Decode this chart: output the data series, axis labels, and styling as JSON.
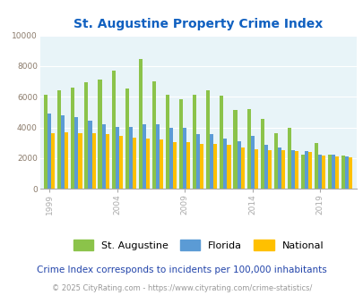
{
  "title": "St. Augustine Property Crime Index",
  "years": [
    1999,
    2000,
    2001,
    2002,
    2003,
    2004,
    2005,
    2006,
    2007,
    2008,
    2009,
    2010,
    2011,
    2012,
    2013,
    2014,
    2015,
    2016,
    2017,
    2018,
    2019,
    2020,
    2021
  ],
  "st_augustine": [
    6150,
    6450,
    6600,
    6950,
    7100,
    7700,
    6550,
    8450,
    7000,
    6150,
    5850,
    6150,
    6450,
    6100,
    5150,
    5200,
    4550,
    3600,
    4000,
    2250,
    3000,
    2250,
    2150
  ],
  "florida": [
    4900,
    4800,
    4650,
    4450,
    4200,
    4050,
    4050,
    4200,
    4200,
    3950,
    3950,
    3550,
    3550,
    3300,
    3100,
    3450,
    2850,
    2700,
    2500,
    2450,
    2250,
    2200,
    2100
  ],
  "national": [
    3600,
    3700,
    3600,
    3600,
    3550,
    3450,
    3350,
    3300,
    3200,
    3050,
    3050,
    2950,
    2900,
    2850,
    2700,
    2550,
    2500,
    2500,
    2450,
    2400,
    2150,
    2100,
    2050
  ],
  "bar_colors": [
    "#8bc34a",
    "#5b9bd5",
    "#ffc000"
  ],
  "ylim": [
    0,
    10000
  ],
  "yticks": [
    0,
    2000,
    4000,
    6000,
    8000,
    10000
  ],
  "bg_color": "#e8f4f8",
  "title_color": "#1060c0",
  "tick_color": "#8B7B6B",
  "legend_labels": [
    "St. Augustine",
    "Florida",
    "National"
  ],
  "footnote1": "Crime Index corresponds to incidents per 100,000 inhabitants",
  "footnote2": "© 2025 CityRating.com - https://www.cityrating.com/crime-statistics/",
  "xtick_years": [
    1999,
    2004,
    2009,
    2014,
    2019
  ]
}
